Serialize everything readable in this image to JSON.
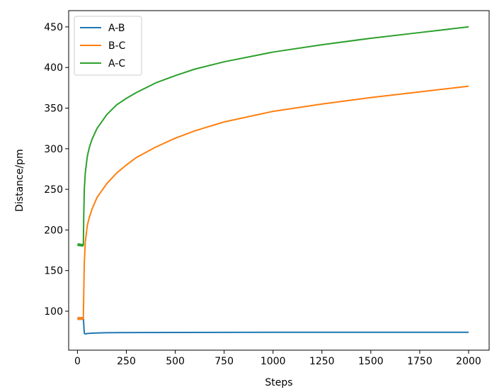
{
  "chart_data": {
    "type": "line",
    "title": "",
    "xlabel": "Steps",
    "ylabel": "Distance/pm",
    "xlim": [
      -45,
      2105
    ],
    "ylim": [
      52,
      470
    ],
    "xticks": [
      0,
      250,
      500,
      750,
      1000,
      1250,
      1500,
      1750,
      2000
    ],
    "yticks": [
      100,
      150,
      200,
      250,
      300,
      350,
      400,
      450
    ],
    "grid": false,
    "legend": {
      "position": "top-left"
    },
    "series": [
      {
        "name": "A-B",
        "color": "#1f77b4",
        "x": [
          0,
          30,
          32,
          34,
          36,
          40,
          50,
          75,
          100,
          150,
          200,
          300,
          500,
          750,
          1000,
          1250,
          1500,
          1750,
          2000
        ],
        "y": [
          91,
          91,
          85,
          76,
          72.5,
          72,
          72.5,
          73,
          73.2,
          73.5,
          73.6,
          73.7,
          73.8,
          73.9,
          74,
          74,
          74,
          74,
          74
        ]
      },
      {
        "name": "B-C",
        "color": "#ff7f0e",
        "x": [
          0,
          30,
          32,
          35,
          40,
          50,
          60,
          75,
          100,
          150,
          200,
          250,
          300,
          400,
          500,
          600,
          750,
          1000,
          1250,
          1500,
          1750,
          2000
        ],
        "y": [
          91,
          91,
          120,
          160,
          185,
          205,
          215,
          226,
          240,
          257,
          270,
          280,
          289,
          302,
          313,
          322,
          333,
          346,
          355,
          363,
          370,
          377
        ]
      },
      {
        "name": "A-C",
        "color": "#2ca02c",
        "x": [
          0,
          30,
          32,
          35,
          40,
          50,
          60,
          75,
          100,
          150,
          200,
          250,
          300,
          400,
          500,
          600,
          750,
          1000,
          1250,
          1500,
          1750,
          2000
        ],
        "y": [
          182,
          181,
          215,
          250,
          270,
          290,
          301,
          312,
          325,
          342,
          354,
          362,
          369,
          381,
          390,
          398,
          407,
          419,
          428,
          436,
          443,
          450
        ]
      }
    ]
  }
}
